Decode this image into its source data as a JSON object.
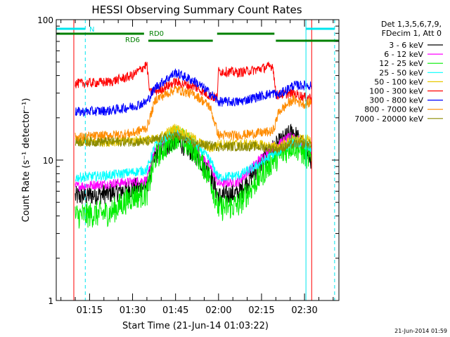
{
  "chart_data": {
    "type": "line",
    "title": "HESSI Observing Summary Count Rates",
    "xlabel": "Start Time (21-Jun-14 01:03:22)",
    "ylabel": "Count Rate (s⁻¹ detector⁻¹)",
    "y_scale": "log",
    "ylim": [
      1,
      100
    ],
    "y_ticks": [
      {
        "value": 1,
        "label": "1"
      },
      {
        "value": 10,
        "label": "10"
      },
      {
        "value": 100,
        "label": "100"
      }
    ],
    "x_range": [
      "01:03:22",
      "02:42:00"
    ],
    "x_ticks": [
      "01:15",
      "01:30",
      "01:45",
      "02:00",
      "02:15",
      "02:30"
    ],
    "x_tick_minutes": [
      75,
      90,
      105,
      120,
      135,
      150
    ],
    "x_range_minutes": [
      63.37,
      162.0
    ],
    "timestamp": "21-Jun-2014 01:59",
    "legend": {
      "placement": "right",
      "header": [
        "Det 1,3,5,6,7,9,",
        "FDecim 1, Att 0"
      ],
      "entries": [
        {
          "label": "3 - 6 keV",
          "color": "#000000"
        },
        {
          "label": "6 - 12 keV",
          "color": "#ff00ff"
        },
        {
          "label": "12 - 25 keV",
          "color": "#00ee00"
        },
        {
          "label": "25 - 50 keV",
          "color": "#00ffff"
        },
        {
          "label": "50 - 100 keV",
          "color": "#e8c800"
        },
        {
          "label": "100 - 300 keV",
          "color": "#ff0000"
        },
        {
          "label": "300 - 800 keV",
          "color": "#0000ff"
        },
        {
          "label": "800 - 7000 keV",
          "color": "#ff8c00"
        },
        {
          "label": "7000 - 20000 keV",
          "color": "#8b8b00"
        }
      ]
    },
    "flags": [
      {
        "label": "N",
        "color": "#00e5ee",
        "segments": [
          [
            63.4,
            73.5
          ],
          [
            150.5,
            160.5
          ]
        ]
      },
      {
        "label": "RD0",
        "color": "#008000",
        "segments": [
          [
            63.4,
            94.0
          ],
          [
            119.5,
            139.5
          ]
        ]
      },
      {
        "label": "RD6",
        "color": "#008000",
        "segments": [
          [
            95.5,
            118.0
          ],
          [
            140.0,
            162.0
          ]
        ]
      }
    ],
    "vertical_markers": [
      {
        "minute": 69.5,
        "color": "#ff0000",
        "style": "solid"
      },
      {
        "minute": 73.5,
        "color": "#00e5ee",
        "style": "dashed"
      },
      {
        "minute": 150.5,
        "color": "#00e5ee",
        "style": "solid"
      },
      {
        "minute": 152.5,
        "color": "#ff0000",
        "style": "solid"
      },
      {
        "minute": 160.5,
        "color": "#00e5ee",
        "style": "dashed"
      }
    ],
    "series": [
      {
        "name": "3 - 6 keV",
        "color": "#000000",
        "points": [
          [
            70,
            5.5
          ],
          [
            82,
            5.8
          ],
          [
            90,
            6.3
          ],
          [
            95,
            6.5
          ],
          [
            98,
            11
          ],
          [
            105,
            14
          ],
          [
            112,
            11
          ],
          [
            117,
            8
          ],
          [
            120,
            5.5
          ],
          [
            127,
            5.8
          ],
          [
            133,
            8.5
          ],
          [
            139,
            12
          ],
          [
            141,
            13
          ],
          [
            146,
            16
          ],
          [
            150,
            12
          ],
          [
            152.5,
            10
          ]
        ]
      },
      {
        "name": "6 - 12 keV",
        "color": "#ff00ff",
        "points": [
          [
            70,
            6.5
          ],
          [
            82,
            6.8
          ],
          [
            90,
            7
          ],
          [
            95,
            7.2
          ],
          [
            98,
            12
          ],
          [
            105,
            16
          ],
          [
            112,
            12
          ],
          [
            117,
            9
          ],
          [
            120,
            6.8
          ],
          [
            127,
            7
          ],
          [
            133,
            9.5
          ],
          [
            139,
            12.5
          ],
          [
            141,
            13
          ],
          [
            146,
            15
          ],
          [
            150,
            12.5
          ],
          [
            152.5,
            11.5
          ]
        ]
      },
      {
        "name": "12 - 25 keV",
        "color": "#00ee00",
        "points": [
          [
            70,
            4
          ],
          [
            82,
            4.2
          ],
          [
            90,
            5.5
          ],
          [
            95,
            5.8
          ],
          [
            98,
            10.5
          ],
          [
            105,
            15
          ],
          [
            112,
            11.5
          ],
          [
            117,
            7.5
          ],
          [
            120,
            4.5
          ],
          [
            127,
            4.8
          ],
          [
            133,
            7
          ],
          [
            139,
            10
          ],
          [
            141,
            10.5
          ],
          [
            146,
            13
          ],
          [
            150,
            11
          ],
          [
            152.5,
            10
          ]
        ]
      },
      {
        "name": "25 - 50 keV",
        "color": "#00ffff",
        "points": [
          [
            70,
            7.5
          ],
          [
            82,
            7.8
          ],
          [
            90,
            8.2
          ],
          [
            95,
            8.5
          ],
          [
            98,
            13
          ],
          [
            105,
            16
          ],
          [
            112,
            13
          ],
          [
            117,
            10
          ],
          [
            120,
            7.5
          ],
          [
            127,
            7.8
          ],
          [
            133,
            9
          ],
          [
            139,
            11
          ],
          [
            141,
            11.5
          ],
          [
            146,
            13.5
          ],
          [
            150,
            13
          ],
          [
            152.5,
            12
          ]
        ]
      },
      {
        "name": "50 - 100 keV",
        "color": "#e8c800",
        "points": [
          [
            70,
            13.5
          ],
          [
            82,
            13.5
          ],
          [
            90,
            13.8
          ],
          [
            95,
            14
          ],
          [
            98,
            14
          ],
          [
            105,
            17
          ],
          [
            112,
            14
          ],
          [
            117,
            12
          ],
          [
            120,
            13
          ],
          [
            127,
            13
          ],
          [
            133,
            13
          ],
          [
            139,
            12.5
          ],
          [
            141,
            12.5
          ],
          [
            146,
            14
          ],
          [
            150,
            14
          ],
          [
            152.5,
            14
          ]
        ]
      },
      {
        "name": "100 - 300 keV",
        "color": "#ff0000",
        "points": [
          [
            70,
            35
          ],
          [
            82,
            36
          ],
          [
            90,
            40
          ],
          [
            95,
            48
          ],
          [
            96,
            30
          ],
          [
            100,
            32
          ],
          [
            105,
            36
          ],
          [
            112,
            33
          ],
          [
            118,
            28
          ],
          [
            119.5,
            28
          ],
          [
            120,
            43
          ],
          [
            127,
            42
          ],
          [
            133,
            44
          ],
          [
            139,
            47
          ],
          [
            140,
            29
          ],
          [
            146,
            30
          ],
          [
            150,
            28
          ],
          [
            152.5,
            28
          ]
        ]
      },
      {
        "name": "300 - 800 keV",
        "color": "#0000ff",
        "points": [
          [
            70,
            22
          ],
          [
            82,
            22.5
          ],
          [
            90,
            24
          ],
          [
            95,
            26
          ],
          [
            98,
            33
          ],
          [
            105,
            42
          ],
          [
            112,
            36
          ],
          [
            117,
            30
          ],
          [
            120,
            26
          ],
          [
            127,
            26
          ],
          [
            133,
            28
          ],
          [
            139,
            30
          ],
          [
            141,
            29
          ],
          [
            146,
            34
          ],
          [
            150,
            34
          ],
          [
            152.5,
            34
          ]
        ]
      },
      {
        "name": "800 - 7000 keV",
        "color": "#ff8c00",
        "points": [
          [
            70,
            14.5
          ],
          [
            82,
            15
          ],
          [
            90,
            15.5
          ],
          [
            95,
            17
          ],
          [
            98,
            27
          ],
          [
            105,
            32
          ],
          [
            112,
            29
          ],
          [
            117,
            24
          ],
          [
            120,
            15
          ],
          [
            127,
            15
          ],
          [
            133,
            15.5
          ],
          [
            139,
            16
          ],
          [
            141,
            22
          ],
          [
            146,
            27
          ],
          [
            150,
            25
          ],
          [
            152.5,
            26
          ]
        ]
      },
      {
        "name": "7000 - 20000 keV",
        "color": "#8b8b00",
        "points": [
          [
            70,
            13.5
          ],
          [
            82,
            13.5
          ],
          [
            90,
            13.5
          ],
          [
            95,
            13.5
          ],
          [
            105,
            15
          ],
          [
            112,
            13
          ],
          [
            120,
            12.5
          ],
          [
            133,
            12.5
          ],
          [
            141,
            12
          ],
          [
            146,
            13
          ],
          [
            152.5,
            13
          ]
        ]
      }
    ]
  }
}
